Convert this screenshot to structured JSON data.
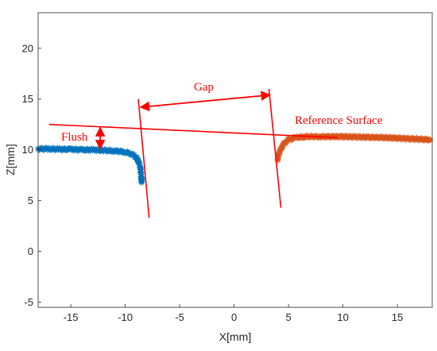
{
  "chart_data": {
    "type": "scatter",
    "xlabel": "X[mm]",
    "ylabel": "Z[mm]",
    "xlim": [
      -18,
      18.2
    ],
    "ylim": [
      -5.5,
      23.5
    ],
    "xticks": [
      -15,
      -10,
      -5,
      0,
      5,
      10,
      15
    ],
    "yticks": [
      -5,
      0,
      5,
      10,
      15,
      20
    ],
    "grid": false,
    "series": [
      {
        "color": "#0072bd",
        "marker": "star",
        "points": [
          [
            -18,
            10.1
          ],
          [
            -17,
            10.1
          ],
          [
            -16,
            10.05
          ],
          [
            -15,
            10.05
          ],
          [
            -14,
            10.0
          ],
          [
            -13,
            10.0
          ],
          [
            -12,
            9.95
          ],
          [
            -11,
            9.9
          ],
          [
            -10,
            9.8
          ],
          [
            -9.6,
            9.65
          ],
          [
            -9.2,
            9.45
          ],
          [
            -8.9,
            9.1
          ],
          [
            -8.7,
            8.6
          ],
          [
            -8.6,
            8.1
          ],
          [
            -8.55,
            7.6
          ],
          [
            -8.5,
            7.1
          ],
          [
            -8.5,
            6.8
          ]
        ]
      },
      {
        "color": "#d95319",
        "marker": "star",
        "points": [
          [
            4.0,
            9.0
          ],
          [
            4.1,
            9.6
          ],
          [
            4.3,
            10.1
          ],
          [
            4.6,
            10.6
          ],
          [
            5.0,
            11.0
          ],
          [
            5.6,
            11.2
          ],
          [
            6.5,
            11.3
          ],
          [
            8,
            11.3
          ],
          [
            10,
            11.3
          ],
          [
            12,
            11.25
          ],
          [
            14,
            11.2
          ],
          [
            16,
            11.1
          ],
          [
            18,
            11.0
          ]
        ]
      }
    ],
    "annotations": [
      {
        "label": "Gap",
        "color": "#ff0000",
        "lines": [
          {
            "x": [
              -8.8,
              -7.8
            ],
            "y": [
              15.0,
              3.3
            ]
          },
          {
            "x": [
              3.2,
              4.3
            ],
            "y": [
              16.0,
              4.3
            ]
          }
        ],
        "double_arrow": {
          "x": [
            -8.6,
            3.3
          ],
          "y": [
            14.2,
            15.4
          ]
        }
      },
      {
        "label": "Flush",
        "color": "#ff0000",
        "lines": [
          {
            "x": [
              -17.0,
              9.5
            ],
            "y": [
              12.5,
              11.2
            ]
          }
        ],
        "double_arrow": {
          "x": [
            -12.3,
            -12.3
          ],
          "y": [
            12.2,
            10.1
          ]
        }
      },
      {
        "label": "Reference Surface",
        "color": "#ff0000"
      }
    ]
  }
}
